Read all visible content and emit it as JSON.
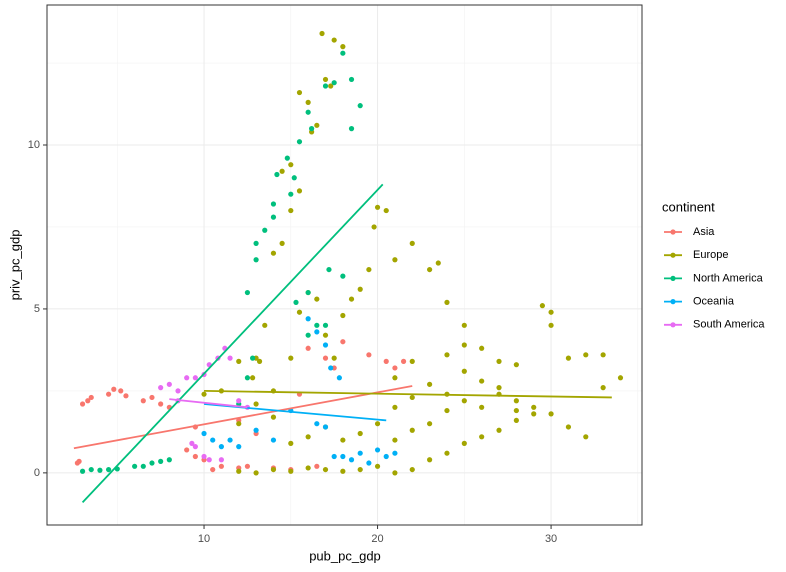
{
  "chart_data": {
    "type": "scatter",
    "xlabel": "pub_pc_gdp",
    "ylabel": "priv_pc_gdp",
    "legend_title": "continent",
    "xlim": [
      0.95,
      35.24
    ],
    "ylim": [
      -1.59,
      14.27
    ],
    "xticks": [
      10,
      20,
      30
    ],
    "yticks": [
      0,
      5,
      10
    ],
    "xminor_ticks": [
      5,
      15,
      25,
      35
    ],
    "yminor_ticks": [
      2.5,
      7.5,
      12.5
    ],
    "grid": true,
    "legend": "right",
    "series": [
      {
        "name": "Asia",
        "color": "#F8766D",
        "x": [
          2.7,
          2.8,
          3,
          3.3,
          3.5,
          4.5,
          4.8,
          5.2,
          5.5,
          6.5,
          7,
          7.5,
          8,
          9,
          9.5,
          10,
          10.5,
          11,
          12,
          12.5,
          14,
          15,
          16.5,
          17,
          17.5,
          18,
          19.5,
          20.5,
          21,
          21.5,
          15.5,
          16,
          9.5,
          12,
          13
        ],
        "y": [
          0.3,
          0.35,
          2.1,
          2.2,
          2.3,
          2.4,
          2.55,
          2.5,
          2.35,
          2.2,
          2.3,
          2.1,
          2.0,
          0.7,
          0.5,
          0.4,
          0.1,
          0.2,
          0.15,
          0.2,
          0.15,
          0.1,
          0.2,
          3.5,
          3.2,
          4.0,
          3.6,
          3.4,
          3.2,
          3.4,
          2.4,
          3.8,
          1.4,
          1.6,
          1.2
        ],
        "fit": {
          "x": [
            2.5,
            22
          ],
          "y": [
            0.75,
            2.65
          ]
        }
      },
      {
        "name": "Europe",
        "color": "#A3A500",
        "x": [
          14.5,
          15,
          15.5,
          16,
          16.5,
          17,
          16.8,
          17.5,
          18,
          17.3,
          16.2,
          15.5,
          15,
          14.5,
          14,
          13.5,
          13.2,
          13,
          12.8,
          14,
          15,
          15.5,
          16,
          16.5,
          17,
          17.5,
          18,
          18.5,
          19,
          19.5,
          20,
          20.5,
          19.8,
          21,
          22,
          23,
          23.5,
          24,
          25,
          26,
          27,
          28,
          29.5,
          30,
          30,
          31,
          32,
          33,
          34,
          33,
          32,
          31,
          30,
          29,
          28,
          27,
          26,
          25,
          24,
          23,
          22,
          21,
          20,
          19,
          18,
          17,
          16,
          15,
          14,
          13,
          12,
          12,
          13,
          14,
          15,
          16,
          17,
          18,
          19,
          20,
          21,
          22,
          23,
          24,
          25,
          26,
          27,
          28,
          29,
          21,
          22,
          23,
          24,
          25,
          26,
          27,
          28,
          21,
          22,
          24,
          25,
          10,
          11,
          12
        ],
        "y": [
          9.2,
          9.4,
          11.6,
          11.3,
          10.6,
          12.0,
          13.4,
          13.2,
          13.0,
          11.8,
          10.4,
          8.6,
          8.0,
          7.0,
          6.7,
          4.5,
          3.4,
          3.5,
          2.9,
          2.5,
          3.5,
          4.9,
          5.5,
          5.3,
          4.2,
          3.5,
          4.8,
          5.3,
          5.6,
          6.2,
          8.1,
          8.0,
          7.5,
          6.5,
          7.0,
          6.2,
          6.4,
          5.2,
          4.5,
          3.8,
          3.4,
          3.3,
          5.1,
          4.9,
          4.5,
          3.5,
          3.6,
          3.6,
          2.9,
          2.6,
          1.1,
          1.4,
          1.8,
          2.0,
          2.2,
          2.6,
          2.8,
          3.1,
          2.4,
          2.7,
          2.3,
          2.0,
          1.5,
          1.2,
          1.0,
          1.4,
          1.1,
          0.9,
          1.7,
          2.1,
          1.5,
          0.05,
          0.0,
          0.1,
          0.05,
          0.15,
          0.1,
          0.05,
          0.1,
          0.2,
          0.0,
          0.1,
          0.4,
          0.6,
          0.9,
          1.1,
          1.3,
          1.6,
          1.8,
          1.0,
          1.3,
          1.5,
          1.9,
          2.2,
          2.0,
          2.4,
          1.9,
          2.9,
          3.4,
          3.6,
          3.9,
          2.4,
          2.5,
          3.4
        ],
        "fit": {
          "x": [
            10,
            33.5
          ],
          "y": [
            2.5,
            2.3
          ]
        }
      },
      {
        "name": "North America",
        "color": "#00BF7D",
        "x": [
          3,
          3.5,
          4,
          4.5,
          5,
          6,
          6.5,
          7,
          7.5,
          8,
          12,
          12.5,
          12.8,
          13,
          13.5,
          14,
          14.2,
          14.8,
          15.2,
          15.5,
          16,
          16.2,
          17,
          17.5,
          18,
          18.5,
          19,
          18.5,
          14,
          15,
          15.3,
          16,
          16.5,
          17,
          17.2,
          18,
          16,
          12.5,
          13
        ],
        "y": [
          0.05,
          0.1,
          0.08,
          0.1,
          0.12,
          0.2,
          0.2,
          0.3,
          0.35,
          0.4,
          2.1,
          2.9,
          3.5,
          6.5,
          7.4,
          7.8,
          9.1,
          9.6,
          9.0,
          10.1,
          11.0,
          10.5,
          11.8,
          11.9,
          12.8,
          12.0,
          11.2,
          10.5,
          8.2,
          8.5,
          5.2,
          5.5,
          4.5,
          4.5,
          6.2,
          6.0,
          4.2,
          5.5,
          7.0
        ],
        "fit": {
          "x": [
            3,
            20.3
          ],
          "y": [
            -0.9,
            8.8
          ]
        }
      },
      {
        "name": "Oceania",
        "color": "#00B0F6",
        "x": [
          10,
          10.5,
          11,
          11.5,
          12,
          13,
          14,
          15,
          16,
          16.5,
          17,
          17.3,
          17.8,
          18,
          18.5,
          19,
          19.5,
          20,
          20.5,
          21,
          17.5,
          16.5,
          17
        ],
        "y": [
          1.2,
          1.0,
          0.8,
          1.0,
          0.8,
          1.3,
          1.0,
          1.9,
          4.7,
          4.3,
          3.9,
          3.2,
          2.9,
          0.5,
          0.4,
          0.6,
          0.3,
          0.7,
          0.5,
          0.6,
          0.5,
          1.5,
          1.4
        ],
        "fit": {
          "x": [
            10,
            20.5
          ],
          "y": [
            2.1,
            1.6
          ]
        }
      },
      {
        "name": "South America",
        "color": "#E76BF3",
        "x": [
          7.5,
          8,
          8.5,
          9,
          9.5,
          10,
          10.3,
          10.8,
          11.2,
          11.5,
          9.3,
          9.5,
          10,
          10.3,
          8.5,
          12,
          12.5,
          11
        ],
        "y": [
          2.6,
          2.7,
          2.5,
          2.9,
          2.9,
          3.0,
          3.3,
          3.5,
          3.8,
          3.5,
          0.9,
          0.8,
          0.5,
          0.4,
          2.2,
          2.2,
          2.0,
          0.4
        ],
        "fit": {
          "x": [
            8,
            12.5
          ],
          "y": [
            2.25,
            2.0
          ]
        }
      }
    ]
  }
}
